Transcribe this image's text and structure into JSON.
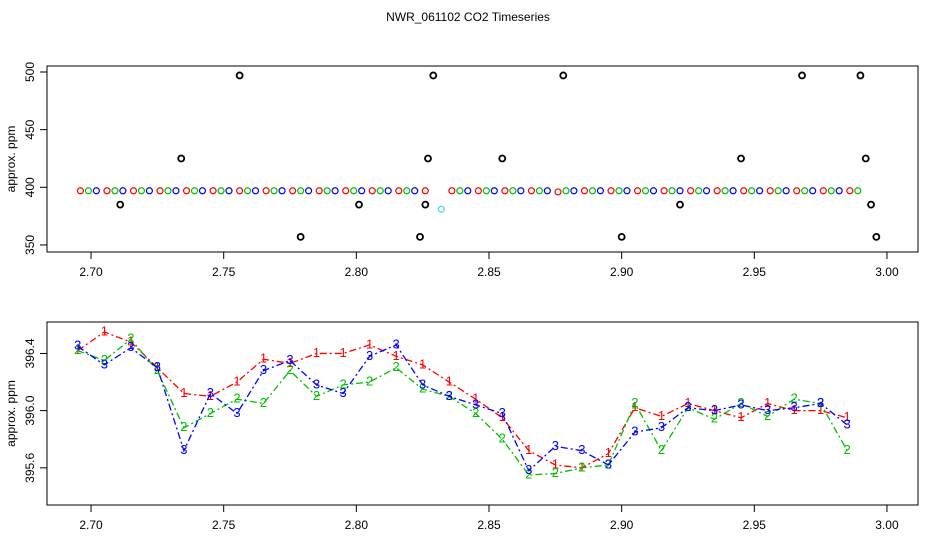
{
  "chart_data": [
    {
      "type": "scatter",
      "title": "NWR_061102  CO2 Timeseries",
      "ylabel": "approx. ppm",
      "xlim": [
        2.6834,
        3.0117
      ],
      "xticks": [
        {
          "value": 2.7,
          "label": "2.70"
        },
        {
          "value": 2.75,
          "label": "2.75"
        },
        {
          "value": 2.8,
          "label": "2.80"
        },
        {
          "value": 2.85,
          "label": "2.85"
        },
        {
          "value": 2.9,
          "label": "2.90"
        },
        {
          "value": 2.95,
          "label": "2.95"
        },
        {
          "value": 3.0,
          "label": "3.00"
        }
      ],
      "ylim": [
        343.9,
        505.2
      ],
      "yticks": [
        350,
        400,
        450,
        500
      ],
      "series": [
        {
          "color": "#ff0000",
          "x": [
            2.696,
            2.706,
            2.716,
            2.726,
            2.736,
            2.746,
            2.756,
            2.766,
            2.776,
            2.786,
            2.796,
            2.806,
            2.816,
            2.826,
            2.836,
            2.846,
            2.856,
            2.866,
            2.876,
            2.886,
            2.896,
            2.906,
            2.916,
            2.926,
            2.936,
            2.946,
            2.956,
            2.966,
            2.976,
            2.986
          ],
          "values": [
            397,
            397,
            397,
            397,
            397,
            397,
            397,
            397,
            397,
            397,
            397,
            397,
            397,
            397,
            397,
            397,
            397,
            397,
            396,
            397,
            397,
            397,
            397,
            397,
            397,
            397,
            397,
            397,
            397,
            397
          ]
        },
        {
          "color": "#00c000",
          "x": [
            2.699,
            2.709,
            2.719,
            2.729,
            2.739,
            2.749,
            2.759,
            2.769,
            2.779,
            2.789,
            2.799,
            2.809,
            2.819,
            2.839,
            2.849,
            2.859,
            2.869,
            2.879,
            2.889,
            2.899,
            2.909,
            2.919,
            2.929,
            2.939,
            2.949,
            2.959,
            2.969,
            2.979,
            2.989
          ],
          "values": [
            397,
            397,
            397,
            397,
            397,
            397,
            397,
            397,
            397,
            397,
            397,
            397,
            397,
            397,
            397,
            397,
            397,
            397,
            397,
            397,
            397,
            397,
            397,
            397,
            397,
            397,
            397,
            397,
            397
          ]
        },
        {
          "color": "#0000ff",
          "x": [
            2.702,
            2.712,
            2.722,
            2.732,
            2.742,
            2.752,
            2.762,
            2.772,
            2.782,
            2.792,
            2.802,
            2.812,
            2.822,
            2.842,
            2.852,
            2.862,
            2.872,
            2.882,
            2.892,
            2.902,
            2.912,
            2.922,
            2.932,
            2.942,
            2.952,
            2.962,
            2.972,
            2.982
          ],
          "values": [
            397,
            397,
            397,
            397,
            397,
            397,
            397,
            397,
            397,
            397,
            397,
            397,
            397,
            397,
            397,
            397,
            397,
            397,
            397,
            397,
            397,
            397,
            397,
            397,
            397,
            397,
            397,
            397
          ]
        },
        {
          "color": "#000000",
          "x": [
            2.711,
            2.734,
            2.756,
            2.779,
            2.801,
            2.824,
            2.826,
            2.827,
            2.829,
            2.855,
            2.878,
            2.9,
            2.922,
            2.945,
            2.968,
            2.99,
            2.992,
            2.994,
            2.996
          ],
          "values": [
            385,
            425,
            497,
            357,
            385,
            357,
            385,
            425,
            497,
            425,
            497,
            357,
            385,
            425,
            497,
            497,
            425,
            385,
            357
          ]
        },
        {
          "color": "#40e0e0",
          "x": [
            2.832
          ],
          "values": [
            381
          ]
        }
      ]
    },
    {
      "type": "line",
      "ylabel": "approx. ppm",
      "xlim": [
        2.6834,
        3.0117
      ],
      "xticks": [
        {
          "value": 2.7,
          "label": "2.70"
        },
        {
          "value": 2.75,
          "label": "2.75"
        },
        {
          "value": 2.8,
          "label": "2.80"
        },
        {
          "value": 2.85,
          "label": "2.85"
        },
        {
          "value": 2.9,
          "label": "2.90"
        },
        {
          "value": 2.95,
          "label": "2.95"
        },
        {
          "value": 3.0,
          "label": "3.00"
        }
      ],
      "ylim": [
        395.34,
        396.62
      ],
      "yticks": [
        395.6,
        {
          "value": 396,
          "label": "396.0"
        },
        396.4
      ],
      "x": [
        2.695,
        2.705,
        2.715,
        2.725,
        2.735,
        2.745,
        2.755,
        2.765,
        2.775,
        2.785,
        2.795,
        2.805,
        2.815,
        2.825,
        2.835,
        2.845,
        2.855,
        2.865,
        2.875,
        2.885,
        2.895,
        2.905,
        2.915,
        2.925,
        2.935,
        2.945,
        2.955,
        2.965,
        2.975,
        2.985
      ],
      "series": [
        {
          "name": "1",
          "color": "#ff0000",
          "values": [
            396.42,
            396.55,
            396.48,
            396.3,
            396.12,
            396.1,
            396.2,
            396.36,
            396.33,
            396.4,
            396.4,
            396.46,
            396.38,
            396.32,
            396.2,
            396.08,
            395.95,
            395.72,
            395.62,
            395.6,
            395.7,
            396.02,
            395.96,
            396.05,
            396.0,
            395.95,
            396.05,
            396.0,
            396.0,
            395.95
          ]
        },
        {
          "name": "2",
          "color": "#00c000",
          "values": [
            396.42,
            396.35,
            396.5,
            396.28,
            395.88,
            395.98,
            396.08,
            396.05,
            396.28,
            396.1,
            396.18,
            396.2,
            396.3,
            396.15,
            396.1,
            395.98,
            395.8,
            395.55,
            395.56,
            395.6,
            395.62,
            396.05,
            395.72,
            396.02,
            395.94,
            396.05,
            395.96,
            396.08,
            396.05,
            395.72
          ]
        },
        {
          "name": "3",
          "color": "#0000ff",
          "values": [
            396.45,
            396.32,
            396.44,
            396.3,
            395.72,
            396.12,
            395.98,
            396.28,
            396.35,
            396.18,
            396.12,
            396.38,
            396.46,
            396.18,
            396.1,
            396.04,
            395.98,
            395.58,
            395.75,
            395.72,
            395.62,
            395.85,
            395.88,
            396.02,
            396.0,
            396.04,
            396.0,
            396.02,
            396.05,
            395.9
          ]
        }
      ]
    }
  ]
}
